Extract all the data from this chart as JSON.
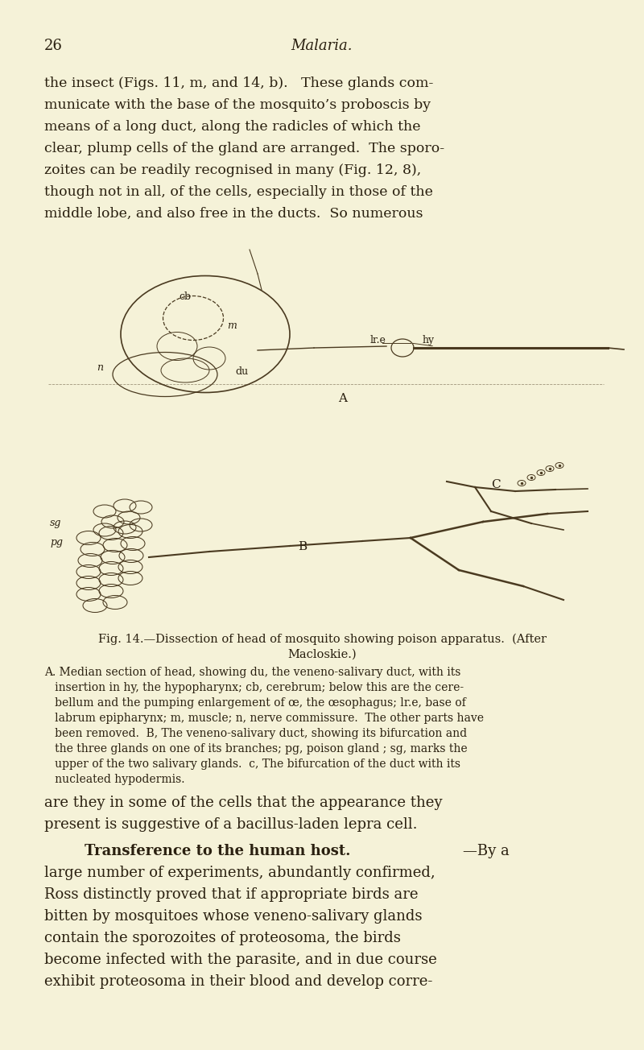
{
  "bg_color": "#f5f2d8",
  "text_color": "#2a2010",
  "sketch_color": "#4a3a20",
  "page_number": "26",
  "header": "Malaria.",
  "top_paragraph_lines": [
    "the insect (Figs. 11, m, and 14, b).   These glands com-",
    "municate with the base of the mosquito’s proboscis by",
    "means of a long duct, along the radicles of which the",
    "clear, plump cells of the gland are arranged.  The sporo-",
    "zoites can be readily recognised in many (Fig. 12, 8),",
    "though not in all, of the cells, especially in those of the",
    "middle lobe, and also free in the ducts.  So numerous"
  ],
  "fig_caption_line1": "Fig. 14.—Dissection of head of mosquito showing poison apparatus.  (After",
  "fig_caption_line2": "Macloskie.)",
  "legend_lines": [
    "A. Median section of head, showing du, the veneno-salivary duct, with its",
    "   insertion in hy, the hypopharynx; cb, cerebrum; below this are the cere-",
    "   bellum and the pumping enlargement of œ, the œsophagus; lr.e, base of",
    "   labrum epipharynx; m, muscle; n, nerve commissure.  The other parts have",
    "   been removed.  B, The veneno-salivary duct, showing its bifurcation and",
    "   the three glands on one of its branches; pg, poison gland ; sg, marks the",
    "   upper of the two salivary glands.  c, The bifurcation of the duct with its",
    "   nucleated hypodermis."
  ],
  "bottom_lines1": [
    "are they in some of the cells that the appearance they",
    "present is suggestive of a bacillus-laden lepra cell."
  ],
  "bottom_bold": "Transference to the human host.",
  "bottom_dash": "—By a",
  "bottom_lines2": [
    "large number of experiments, abundantly confirmed,",
    "Ross distinctly proved that if appropriate birds are",
    "bitten by mosquitoes whose veneno-salivary glands",
    "contain the sporozoites of proteosoma, the birds",
    "become infected with the parasite, and in due course",
    "exhibit proteosoma in their blood and develop corre-"
  ]
}
